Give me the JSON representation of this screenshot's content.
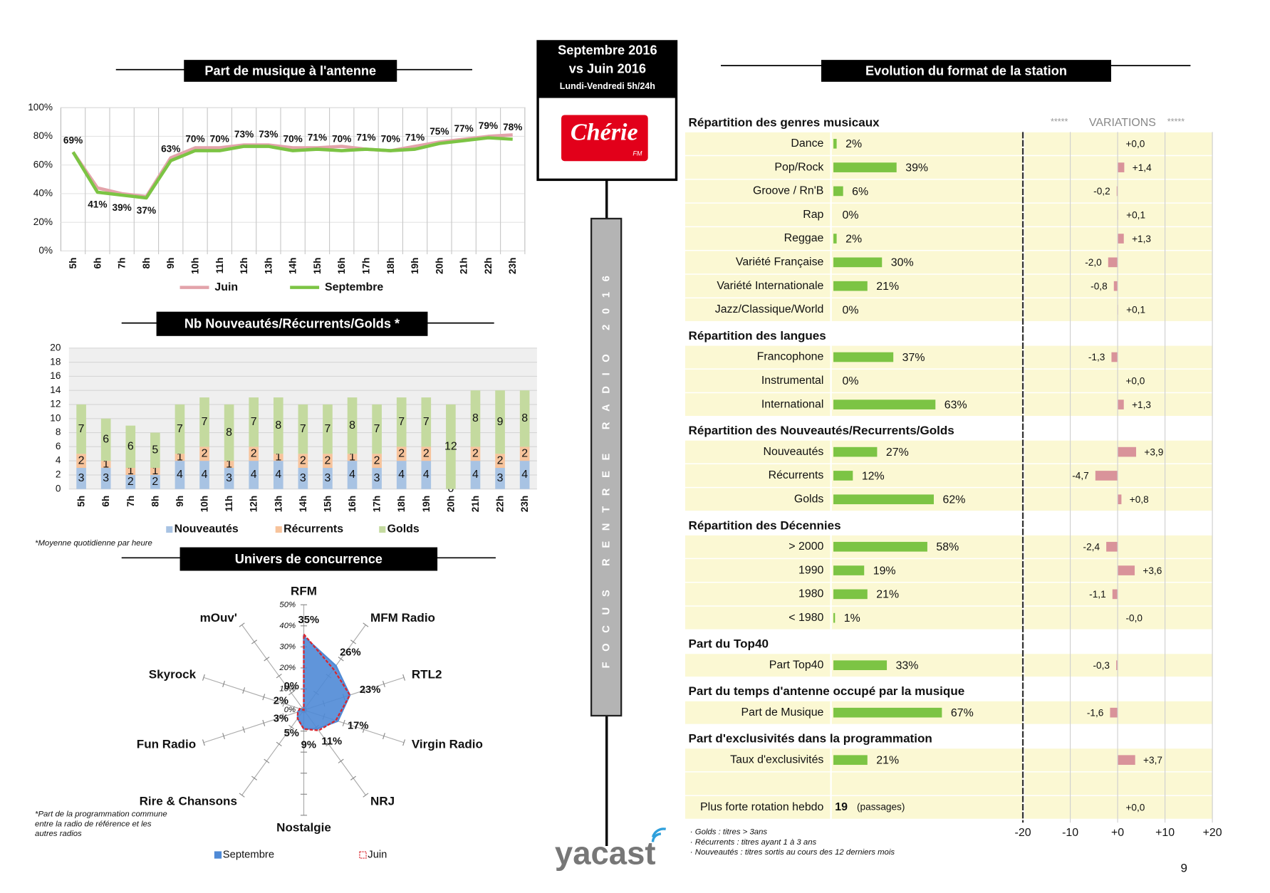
{
  "header": {
    "period": "Septembre 2016",
    "comparison": "vs Juin 2016",
    "slot": "Lundi-Vendredi 5h/24h",
    "logo": "Chérie",
    "logo_sub": "FM"
  },
  "banner": "FOCUS RENTREE RADIO 2016",
  "brand": "yacast",
  "page_number": "9",
  "chart_data": [
    {
      "type": "line",
      "title": "Part de musique à l'antenne",
      "categories": [
        "5h",
        "6h",
        "7h",
        "8h",
        "9h",
        "10h",
        "11h",
        "12h",
        "13h",
        "14h",
        "15h",
        "16h",
        "17h",
        "18h",
        "19h",
        "20h",
        "21h",
        "22h",
        "23h"
      ],
      "series": [
        {
          "name": "Juin",
          "color": "#e3a3aa",
          "values": [
            69,
            44,
            40,
            38,
            65,
            72,
            72,
            74,
            74,
            72,
            72,
            73,
            71,
            70,
            73,
            76,
            78,
            80,
            81
          ]
        },
        {
          "name": "Septembre",
          "color": "#7cc444",
          "values": [
            69,
            41,
            39,
            37,
            63,
            70,
            70,
            73,
            73,
            70,
            71,
            70,
            71,
            70,
            71,
            75,
            77,
            79,
            78
          ],
          "value_labels": [
            "69%",
            "41%",
            "39%",
            "37%",
            "63%",
            "70%",
            "70%",
            "73%",
            "73%",
            "70%",
            "71%",
            "70%",
            "71%",
            "70%",
            "71%",
            "75%",
            "77%",
            "79%",
            "78%"
          ]
        }
      ],
      "ylim": [
        0,
        100
      ],
      "yticks": [
        {
          "value": 0,
          "label": "0%"
        },
        {
          "value": 20,
          "label": "20%"
        },
        {
          "value": 40,
          "label": "40%"
        },
        {
          "value": 60,
          "label": "60%"
        },
        {
          "value": 80,
          "label": "80%"
        },
        {
          "value": 100,
          "label": "100%"
        }
      ],
      "grid": true,
      "legend": "bottom"
    },
    {
      "type": "stacked-bar",
      "title": "Nb Nouveautés/Récurrents/Golds *",
      "categories": [
        "5h",
        "6h",
        "7h",
        "8h",
        "9h",
        "10h",
        "11h",
        "12h",
        "13h",
        "14h",
        "15h",
        "16h",
        "17h",
        "18h",
        "19h",
        "20h",
        "21h",
        "22h",
        "23h"
      ],
      "series": [
        {
          "name": "Nouveautés",
          "color": "#a8c3e3",
          "values": [
            3,
            3,
            2,
            2,
            4,
            4,
            3,
            4,
            4,
            3,
            3,
            4,
            3,
            4,
            4,
            0,
            4,
            3,
            4
          ]
        },
        {
          "name": "Récurrents",
          "color": "#f7c39b",
          "values": [
            2,
            1,
            1,
            1,
            1,
            2,
            1,
            2,
            1,
            2,
            2,
            1,
            2,
            2,
            2,
            null,
            2,
            2,
            2
          ]
        },
        {
          "name": "Golds",
          "color": "#c4da9f",
          "values": [
            7,
            6,
            6,
            5,
            7,
            7,
            8,
            7,
            8,
            7,
            7,
            8,
            7,
            7,
            7,
            12,
            8,
            9,
            8
          ]
        }
      ],
      "ylim": [
        0,
        20
      ],
      "yticks": [
        0,
        2,
        4,
        6,
        8,
        10,
        12,
        14,
        16,
        18,
        20
      ],
      "grid": true,
      "legend": "bottom",
      "note": "*Moyenne quotidienne par heure"
    },
    {
      "type": "radar",
      "title": "Univers de concurrence",
      "categories": [
        "RFM",
        "MFM Radio",
        "RTL2",
        "Virgin Radio",
        "NRJ",
        "Nostalgie",
        "Rire & Chansons",
        "Fun Radio",
        "Skyrock",
        "mOuv'"
      ],
      "series": [
        {
          "name": "Septembre",
          "color": "#4f8ad6",
          "values": [
            35,
            26,
            23,
            17,
            11,
            9,
            5,
            3,
            2,
            0
          ],
          "value_labels": [
            "35%",
            "26%",
            "23%",
            "17%",
            "11%",
            "9%",
            "5%",
            "3%",
            "2%",
            "0%"
          ]
        },
        {
          "name": "Juin",
          "color": "#d9262e",
          "values": [
            36,
            24,
            23,
            16,
            12,
            9,
            5,
            3,
            2,
            0
          ]
        }
      ],
      "rlim": [
        0,
        50
      ],
      "rticks": [
        {
          "value": 0,
          "label": "0%"
        },
        {
          "value": 10,
          "label": "10%"
        },
        {
          "value": 20,
          "label": "20%"
        },
        {
          "value": 30,
          "label": "30%"
        },
        {
          "value": 40,
          "label": "40%"
        },
        {
          "value": 50,
          "label": "50%"
        }
      ],
      "legend": "bottom",
      "note": [
        "*Part de la programmation commune",
        "entre la radio de référence et les",
        "autres radios"
      ]
    }
  ],
  "format": {
    "title": "Evolution du format de la station",
    "variations": {
      "left": "*****",
      "title": "VARIATIONS",
      "right": "*****"
    },
    "sections": [
      {
        "title": "Répartition des genres musicaux",
        "rows": [
          {
            "label": "Dance",
            "value": 2,
            "value_label": "2%",
            "variation": 0,
            "variation_label": "+0,0"
          },
          {
            "label": "Pop/Rock",
            "value": 39,
            "value_label": "39%",
            "variation": 1.4,
            "variation_label": "+1,4"
          },
          {
            "label": "Groove / Rn'B",
            "value": 6,
            "value_label": "6%",
            "variation": -0.2,
            "variation_label": "-0,2"
          },
          {
            "label": "Rap",
            "value": 0,
            "value_label": "0%",
            "variation": 0.1,
            "variation_label": "+0,1"
          },
          {
            "label": "Reggae",
            "value": 2,
            "value_label": "2%",
            "variation": 1.3,
            "variation_label": "+1,3"
          },
          {
            "label": "Variété Française",
            "value": 30,
            "value_label": "30%",
            "variation": -2.0,
            "variation_label": "-2,0"
          },
          {
            "label": "Variété Internationale",
            "value": 21,
            "value_label": "21%",
            "variation": -0.8,
            "variation_label": "-0,8"
          },
          {
            "label": "Jazz/Classique/World",
            "value": 0,
            "value_label": "0%",
            "variation": 0.1,
            "variation_label": "+0,1"
          }
        ]
      },
      {
        "title": "Répartition des langues",
        "rows": [
          {
            "label": "Francophone",
            "value": 37,
            "value_label": "37%",
            "variation": -1.3,
            "variation_label": "-1,3"
          },
          {
            "label": "Instrumental",
            "value": 0,
            "value_label": "0%",
            "variation": 0,
            "variation_label": "+0,0"
          },
          {
            "label": "International",
            "value": 63,
            "value_label": "63%",
            "variation": 1.3,
            "variation_label": "+1,3"
          }
        ]
      },
      {
        "title": "Répartition des Nouveautés/Recurrents/Golds",
        "rows": [
          {
            "label": "Nouveautés",
            "value": 27,
            "value_label": "27%",
            "variation": 3.9,
            "variation_label": "+3,9"
          },
          {
            "label": "Récurrents",
            "value": 12,
            "value_label": "12%",
            "variation": -4.7,
            "variation_label": "-4,7"
          },
          {
            "label": "Golds",
            "value": 62,
            "value_label": "62%",
            "variation": 0.8,
            "variation_label": "+0,8"
          }
        ]
      },
      {
        "title": "Répartition des Décennies",
        "rows": [
          {
            "label": "> 2000",
            "value": 58,
            "value_label": "58%",
            "variation": -2.4,
            "variation_label": "-2,4"
          },
          {
            "label": "1990",
            "value": 19,
            "value_label": "19%",
            "variation": 3.6,
            "variation_label": "+3,6"
          },
          {
            "label": "1980",
            "value": 21,
            "value_label": "21%",
            "variation": -1.1,
            "variation_label": "-1,1"
          },
          {
            "label": "< 1980",
            "value": 1,
            "value_label": "1%",
            "variation": 0,
            "variation_label": "-0,0"
          }
        ]
      },
      {
        "title": "Part du Top40",
        "rows": [
          {
            "label": "Part Top40",
            "value": 33,
            "value_label": "33%",
            "variation": -0.3,
            "variation_label": "-0,3"
          }
        ]
      },
      {
        "title": "Part du temps d'antenne occupé par la musique",
        "rows": [
          {
            "label": "Part de Musique",
            "value": 67,
            "value_label": "67%",
            "variation": -1.6,
            "variation_label": "-1,6"
          }
        ]
      },
      {
        "title": "Part d'exclusivités dans la programmation",
        "rows": [
          {
            "label": "Taux d'exclusivités",
            "value": 21,
            "value_label": "21%",
            "variation": 3.7,
            "variation_label": "+3,7"
          }
        ]
      }
    ],
    "rotation": {
      "label": "Plus forte rotation hebdo",
      "value": 19,
      "unit": "(passages)",
      "variation": 0,
      "variation_label": "+0,0"
    },
    "bar_color": "#7cc444",
    "variation_color": "#d9939a",
    "xlim": [
      -20,
      20
    ],
    "xticks": [
      -20,
      -10,
      {
        "value": 0,
        "label": "+0"
      },
      {
        "value": 10,
        "label": "+10"
      },
      {
        "value": 20,
        "label": "+20"
      }
    ],
    "notes": [
      "· Golds : titres > 3ans",
      "· Récurrents : titres ayant 1 à 3 ans",
      "· Nouveautés : titres sortis au cours des 12 derniers mois"
    ]
  }
}
